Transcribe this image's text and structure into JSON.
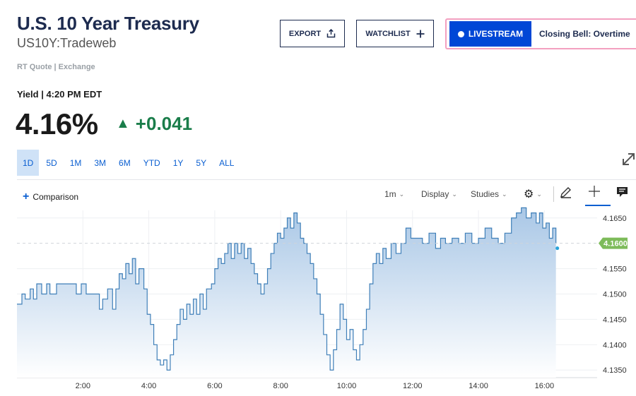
{
  "header": {
    "title": "U.S. 10 Year Treasury",
    "subtitle": "US10Y:Tradeweb",
    "rt_quote": "RT Quote | Exchange"
  },
  "actions": {
    "export_label": "EXPORT",
    "export_icon": "share-icon",
    "watchlist_label": "WATCHLIST",
    "watchlist_icon": "plus-icon",
    "livestream_label": "LIVESTREAM",
    "livestream_show": "Closing Bell: Overtime"
  },
  "quote": {
    "label": "Yield | 4:20 PM EDT",
    "price": "4.16%",
    "change": "+0.041",
    "change_color": "#1a7d4a",
    "direction": "up"
  },
  "ranges": [
    {
      "label": "1D",
      "active": true
    },
    {
      "label": "5D",
      "active": false
    },
    {
      "label": "1M",
      "active": false
    },
    {
      "label": "3M",
      "active": false
    },
    {
      "label": "6M",
      "active": false
    },
    {
      "label": "YTD",
      "active": false
    },
    {
      "label": "1Y",
      "active": false
    },
    {
      "label": "5Y",
      "active": false
    },
    {
      "label": "ALL",
      "active": false
    }
  ],
  "toolbar": {
    "comparison_label": "Comparison",
    "interval_label": "1m",
    "display_label": "Display",
    "studies_label": "Studies",
    "gear_icon": "gear-icon",
    "pencil_icon": "pencil-icon",
    "crosshair_icon": "crosshair-icon",
    "comment_icon": "comment-icon",
    "expand_icon": "expand-icon"
  },
  "chart_data": {
    "type": "area",
    "title": "",
    "xlabel": "",
    "ylabel": "",
    "x_ticks": [
      "2:00",
      "4:00",
      "6:00",
      "8:00",
      "10:00",
      "12:00",
      "14:00",
      "16:00"
    ],
    "y_ticks": [
      4.165,
      4.155,
      4.15,
      4.145,
      4.14,
      4.135
    ],
    "y_tick_labels": [
      "4.1650",
      "4.1550",
      "4.1500",
      "4.1450",
      "4.1400",
      "4.1350"
    ],
    "current_value": 4.16,
    "current_label": "4.1600",
    "xlim": [
      0,
      17.6
    ],
    "ylim": [
      4.1335,
      4.1665
    ],
    "line_color": "#3f7fb8",
    "fill_color_top": "#a9c7e6",
    "fill_color_bottom": "#ffffff",
    "price_tag_color": "#7dbb5a",
    "x_unit": "hours",
    "points": [
      [
        0.0,
        4.148
      ],
      [
        0.15,
        4.15
      ],
      [
        0.25,
        4.149
      ],
      [
        0.4,
        4.151
      ],
      [
        0.5,
        4.149
      ],
      [
        0.6,
        4.152
      ],
      [
        0.75,
        4.15
      ],
      [
        0.9,
        4.152
      ],
      [
        1.0,
        4.15
      ],
      [
        1.2,
        4.152
      ],
      [
        1.5,
        4.152
      ],
      [
        1.8,
        4.15
      ],
      [
        1.95,
        4.152
      ],
      [
        2.1,
        4.15
      ],
      [
        2.3,
        4.15
      ],
      [
        2.5,
        4.147
      ],
      [
        2.6,
        4.149
      ],
      [
        2.75,
        4.151
      ],
      [
        2.9,
        4.147
      ],
      [
        3.0,
        4.151
      ],
      [
        3.1,
        4.154
      ],
      [
        3.2,
        4.153
      ],
      [
        3.3,
        4.156
      ],
      [
        3.4,
        4.154
      ],
      [
        3.5,
        4.157
      ],
      [
        3.6,
        4.152
      ],
      [
        3.7,
        4.155
      ],
      [
        3.85,
        4.151
      ],
      [
        3.95,
        4.146
      ],
      [
        4.05,
        4.144
      ],
      [
        4.15,
        4.14
      ],
      [
        4.25,
        4.137
      ],
      [
        4.35,
        4.136
      ],
      [
        4.45,
        4.137
      ],
      [
        4.55,
        4.135
      ],
      [
        4.65,
        4.138
      ],
      [
        4.75,
        4.141
      ],
      [
        4.85,
        4.144
      ],
      [
        4.95,
        4.147
      ],
      [
        5.05,
        4.145
      ],
      [
        5.15,
        4.148
      ],
      [
        5.25,
        4.146
      ],
      [
        5.35,
        4.149
      ],
      [
        5.45,
        4.146
      ],
      [
        5.55,
        4.15
      ],
      [
        5.65,
        4.147
      ],
      [
        5.75,
        4.151
      ],
      [
        5.9,
        4.152
      ],
      [
        6.0,
        4.155
      ],
      [
        6.1,
        4.157
      ],
      [
        6.2,
        4.156
      ],
      [
        6.3,
        4.158
      ],
      [
        6.4,
        4.16
      ],
      [
        6.5,
        4.157
      ],
      [
        6.6,
        4.16
      ],
      [
        6.7,
        4.158
      ],
      [
        6.8,
        4.16
      ],
      [
        6.9,
        4.157
      ],
      [
        7.0,
        4.159
      ],
      [
        7.1,
        4.156
      ],
      [
        7.2,
        4.154
      ],
      [
        7.3,
        4.152
      ],
      [
        7.4,
        4.15
      ],
      [
        7.5,
        4.152
      ],
      [
        7.6,
        4.155
      ],
      [
        7.7,
        4.158
      ],
      [
        7.8,
        4.16
      ],
      [
        7.9,
        4.162
      ],
      [
        8.0,
        4.161
      ],
      [
        8.1,
        4.163
      ],
      [
        8.2,
        4.165
      ],
      [
        8.3,
        4.163
      ],
      [
        8.4,
        4.166
      ],
      [
        8.5,
        4.164
      ],
      [
        8.6,
        4.161
      ],
      [
        8.7,
        4.16
      ],
      [
        8.8,
        4.158
      ],
      [
        8.9,
        4.156
      ],
      [
        9.0,
        4.153
      ],
      [
        9.1,
        4.15
      ],
      [
        9.2,
        4.146
      ],
      [
        9.3,
        4.142
      ],
      [
        9.4,
        4.138
      ],
      [
        9.5,
        4.135
      ],
      [
        9.6,
        4.139
      ],
      [
        9.7,
        4.143
      ],
      [
        9.8,
        4.148
      ],
      [
        9.9,
        4.145
      ],
      [
        10.0,
        4.141
      ],
      [
        10.1,
        4.143
      ],
      [
        10.2,
        4.139
      ],
      [
        10.3,
        4.137
      ],
      [
        10.4,
        4.14
      ],
      [
        10.5,
        4.143
      ],
      [
        10.6,
        4.147
      ],
      [
        10.7,
        4.152
      ],
      [
        10.8,
        4.156
      ],
      [
        10.9,
        4.158
      ],
      [
        11.0,
        4.156
      ],
      [
        11.1,
        4.159
      ],
      [
        11.2,
        4.157
      ],
      [
        11.35,
        4.16
      ],
      [
        11.5,
        4.158
      ],
      [
        11.65,
        4.16
      ],
      [
        11.8,
        4.163
      ],
      [
        11.95,
        4.161
      ],
      [
        12.1,
        4.161
      ],
      [
        12.3,
        4.16
      ],
      [
        12.5,
        4.162
      ],
      [
        12.7,
        4.159
      ],
      [
        12.85,
        4.161
      ],
      [
        13.0,
        4.16
      ],
      [
        13.2,
        4.161
      ],
      [
        13.4,
        4.16
      ],
      [
        13.6,
        4.162
      ],
      [
        13.8,
        4.16
      ],
      [
        14.0,
        4.161
      ],
      [
        14.2,
        4.163
      ],
      [
        14.4,
        4.161
      ],
      [
        14.6,
        4.16
      ],
      [
        14.8,
        4.162
      ],
      [
        15.0,
        4.165
      ],
      [
        15.15,
        4.166
      ],
      [
        15.3,
        4.167
      ],
      [
        15.45,
        4.165
      ],
      [
        15.6,
        4.166
      ],
      [
        15.75,
        4.164
      ],
      [
        15.85,
        4.166
      ],
      [
        15.95,
        4.163
      ],
      [
        16.05,
        4.164
      ],
      [
        16.15,
        4.161
      ],
      [
        16.25,
        4.163
      ],
      [
        16.35,
        4.16
      ]
    ]
  }
}
